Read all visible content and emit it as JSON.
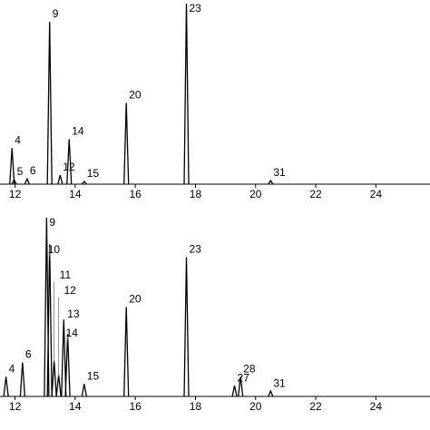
{
  "chart_data": [
    {
      "type": "line",
      "x": [
        11.9,
        11.97,
        12.4,
        13.15,
        13.5,
        13.8,
        14.3,
        15.7,
        17.7,
        20.5
      ],
      "values": [
        20,
        2.5,
        3,
        90,
        5,
        25,
        1.5,
        45,
        100,
        2
      ],
      "peak_labels": [
        "4",
        "5",
        "6",
        "9",
        "12",
        "14",
        "15",
        "20",
        "23",
        "31"
      ],
      "xlim": [
        11.5,
        25.8
      ],
      "xticks": [
        12,
        14,
        16,
        18,
        20,
        22,
        24
      ],
      "ylim": [
        0,
        100
      ]
    },
    {
      "type": "line",
      "x": [
        11.7,
        12.25,
        13.05,
        13.15,
        13.3,
        13.45,
        13.62,
        13.75,
        14.3,
        15.7,
        17.7,
        19.3,
        19.5,
        20.5
      ],
      "values": [
        11,
        19,
        100,
        85,
        20,
        12,
        43,
        35,
        7,
        50,
        78,
        6,
        11,
        3
      ],
      "peak_labels": [
        "4",
        "6",
        "9",
        "10",
        "11",
        "12",
        "13",
        "14",
        "15",
        "20",
        "23",
        "27",
        "28",
        "31"
      ],
      "xlim": [
        11.5,
        25.8
      ],
      "xticks": [
        12,
        14,
        16,
        18,
        20,
        22,
        24
      ],
      "ylim": [
        0,
        100
      ]
    }
  ]
}
